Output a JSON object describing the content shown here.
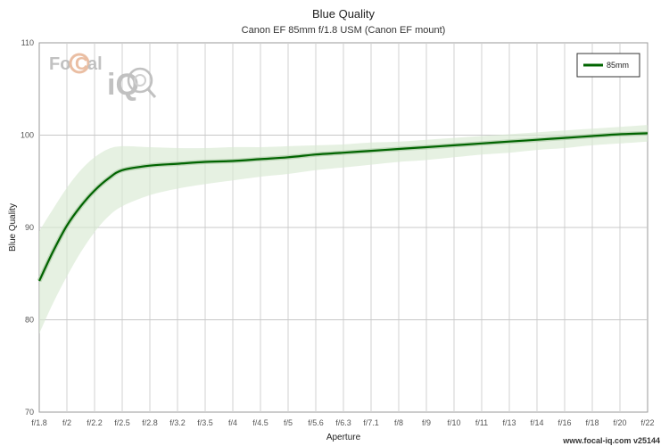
{
  "chart_data": {
    "type": "line",
    "title": "Blue Quality",
    "subtitle": "Canon EF 85mm f/1.8 USM (Canon EF mount)",
    "xlabel": "Aperture",
    "ylabel": "Blue Quality",
    "ylim": [
      70,
      110
    ],
    "yticks": [
      70,
      80,
      90,
      100,
      110
    ],
    "categories": [
      "f/1.8",
      "f/2",
      "f/2.2",
      "f/2.5",
      "f/2.8",
      "f/3.2",
      "f/3.5",
      "f/4",
      "f/4.5",
      "f/5",
      "f/5.6",
      "f/6.3",
      "f/7.1",
      "f/8",
      "f/9",
      "f/10",
      "f/11",
      "f/13",
      "f/14",
      "f/16",
      "f/18",
      "f/20",
      "f/22"
    ],
    "grid": true,
    "legend_position": "top-right",
    "series": [
      {
        "name": "85mm",
        "color": "#006400",
        "band_color": "#d9ead3",
        "x": [
          0,
          0.5,
          1,
          1.5,
          2,
          2.5,
          3,
          4,
          5,
          6,
          7,
          8,
          9,
          10,
          11,
          12,
          13,
          14,
          15,
          16,
          17,
          18,
          19,
          20,
          21,
          22
        ],
        "values": [
          84.2,
          87.4,
          90.2,
          92.3,
          94.0,
          95.3,
          96.2,
          96.7,
          96.9,
          97.1,
          97.2,
          97.4,
          97.6,
          97.9,
          98.1,
          98.3,
          98.5,
          98.7,
          98.9,
          99.1,
          99.3,
          99.5,
          99.7,
          99.9,
          100.1,
          100.2
        ],
        "band_upper": [
          89.6,
          92.0,
          94.3,
          96.2,
          97.6,
          98.5,
          98.8,
          98.7,
          98.6,
          98.6,
          98.7,
          98.7,
          98.8,
          98.9,
          99.0,
          99.2,
          99.3,
          99.5,
          99.7,
          99.9,
          100.1,
          100.3,
          100.5,
          100.7,
          100.9,
          101.1
        ],
        "band_lower": [
          78.5,
          81.8,
          84.7,
          87.3,
          89.5,
          91.2,
          92.3,
          93.5,
          94.2,
          94.7,
          95.1,
          95.5,
          95.8,
          96.2,
          96.5,
          96.8,
          97.1,
          97.3,
          97.6,
          97.9,
          98.1,
          98.4,
          98.6,
          98.9,
          99.1,
          99.3
        ]
      }
    ]
  },
  "logo": {
    "text_left": "Fo",
    "text_c": "C",
    "text_right": "al",
    "text_iq": "iQ"
  },
  "footer": "www.focal-iq.com  v25144"
}
